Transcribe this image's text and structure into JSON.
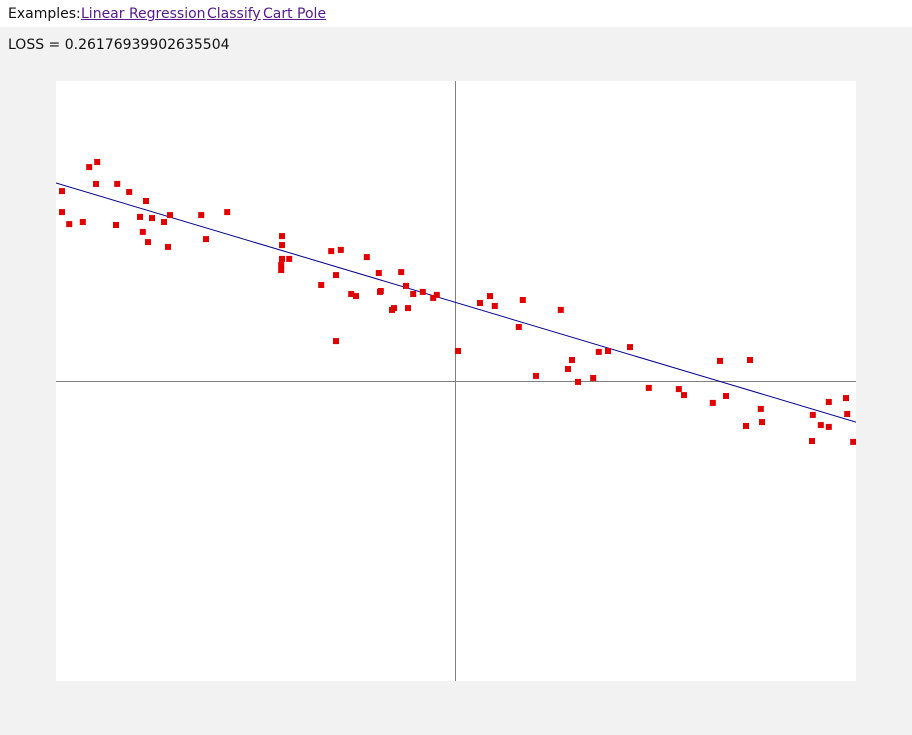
{
  "header": {
    "examples_label": "Examples:",
    "links": [
      {
        "label": "Linear Regression"
      },
      {
        "label": "Classify"
      },
      {
        "label": "Cart Pole"
      }
    ]
  },
  "loss": {
    "text": "LOSS = 0.26176939902635504"
  },
  "colors": {
    "point": "#e00000",
    "fit_line": "#00008b",
    "axis": "#808080",
    "link": "#551a8b"
  },
  "chart_data": {
    "type": "scatter",
    "title": "",
    "xlabel": "",
    "ylabel": "",
    "xlim": [
      -1,
      1
    ],
    "ylim": [
      -1,
      1
    ],
    "grid": false,
    "axes_through_origin": true,
    "series": [
      {
        "points": [
          [
            -0.985,
            0.633
          ],
          [
            -0.985,
            0.563
          ],
          [
            -0.967,
            0.523
          ],
          [
            -0.933,
            0.53
          ],
          [
            -0.917,
            0.713
          ],
          [
            -0.9,
            0.657
          ],
          [
            -0.897,
            0.73
          ],
          [
            -0.85,
            0.52
          ],
          [
            -0.847,
            0.657
          ],
          [
            -0.817,
            0.63
          ],
          [
            -0.79,
            0.547
          ],
          [
            -0.783,
            0.497
          ],
          [
            -0.775,
            0.6
          ],
          [
            -0.77,
            0.463
          ],
          [
            -0.76,
            0.543
          ],
          [
            -0.73,
            0.53
          ],
          [
            -0.72,
            0.447
          ],
          [
            -0.715,
            0.553
          ],
          [
            -0.637,
            0.553
          ],
          [
            -0.625,
            0.473
          ],
          [
            -0.572,
            0.563
          ],
          [
            -0.437,
            0.37
          ],
          [
            -0.437,
            0.387
          ],
          [
            -0.435,
            0.407
          ],
          [
            -0.435,
            0.483
          ],
          [
            -0.435,
            0.453
          ],
          [
            -0.417,
            0.407
          ],
          [
            -0.337,
            0.32
          ],
          [
            -0.312,
            0.433
          ],
          [
            -0.3,
            0.353
          ],
          [
            -0.3,
            0.133
          ],
          [
            -0.288,
            0.437
          ],
          [
            -0.262,
            0.29
          ],
          [
            -0.25,
            0.283
          ],
          [
            -0.223,
            0.413
          ],
          [
            -0.193,
            0.36
          ],
          [
            -0.19,
            0.297
          ],
          [
            -0.188,
            0.3
          ],
          [
            -0.16,
            0.237
          ],
          [
            -0.155,
            0.243
          ],
          [
            -0.137,
            0.363
          ],
          [
            -0.125,
            0.317
          ],
          [
            -0.12,
            0.243
          ],
          [
            -0.107,
            0.29
          ],
          [
            -0.083,
            0.297
          ],
          [
            -0.057,
            0.277
          ],
          [
            -0.048,
            0.287
          ],
          [
            0.005,
            0.1
          ],
          [
            0.06,
            0.26
          ],
          [
            0.085,
            0.283
          ],
          [
            0.097,
            0.25
          ],
          [
            0.157,
            0.18
          ],
          [
            0.167,
            0.27
          ],
          [
            0.2,
            0.017
          ],
          [
            0.262,
            0.237
          ],
          [
            0.28,
            0.04
          ],
          [
            0.29,
            0.07
          ],
          [
            0.305,
            -0.003
          ],
          [
            0.343,
            0.01
          ],
          [
            0.357,
            0.097
          ],
          [
            0.38,
            0.1
          ],
          [
            0.435,
            0.113
          ],
          [
            0.482,
            -0.023
          ],
          [
            0.557,
            -0.027
          ],
          [
            0.57,
            -0.047
          ],
          [
            0.642,
            -0.073
          ],
          [
            0.66,
            0.067
          ],
          [
            0.675,
            -0.05
          ],
          [
            0.725,
            -0.15
          ],
          [
            0.735,
            0.07
          ],
          [
            0.762,
            -0.093
          ],
          [
            0.765,
            -0.137
          ],
          [
            0.89,
            -0.2
          ],
          [
            0.892,
            -0.113
          ],
          [
            0.912,
            -0.147
          ],
          [
            0.932,
            -0.07
          ],
          [
            0.932,
            -0.153
          ],
          [
            0.975,
            -0.057
          ],
          [
            0.978,
            -0.11
          ],
          [
            0.993,
            -0.203
          ]
        ]
      }
    ],
    "fit_line": {
      "x": [
        -1,
        1
      ],
      "y": [
        0.66,
        -0.137
      ]
    }
  }
}
